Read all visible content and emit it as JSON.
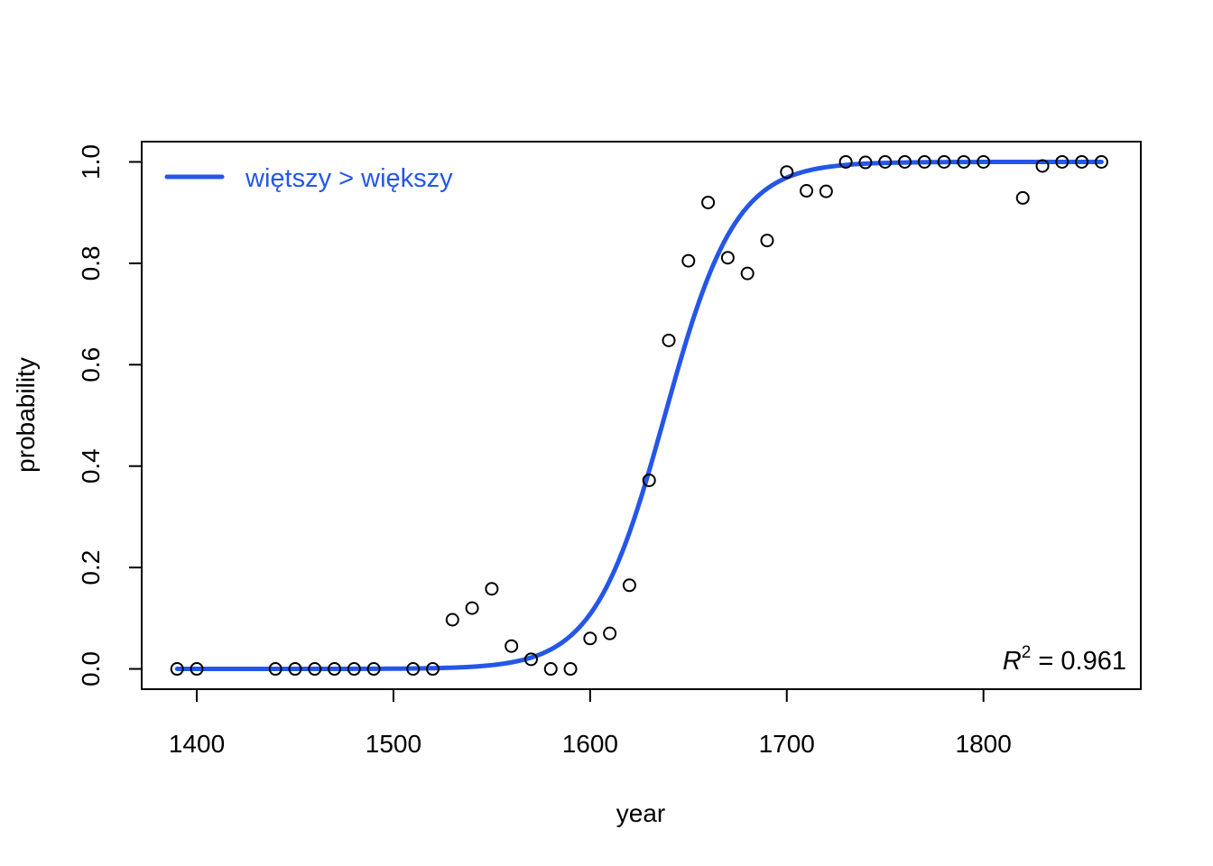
{
  "chart_data": {
    "type": "scatter",
    "xlabel": "year",
    "ylabel": "probability",
    "xlim": [
      1372,
      1880
    ],
    "ylim": [
      -0.04,
      1.04
    ],
    "x_ticks": [
      1400,
      1500,
      1600,
      1700,
      1800
    ],
    "y_ticks": [
      0.0,
      0.2,
      0.4,
      0.6,
      0.8,
      1.0
    ],
    "x_tick_labels": [
      "1400",
      "1500",
      "1600",
      "1700",
      "1800"
    ],
    "y_tick_labels": [
      "0.0",
      "0.2",
      "0.4",
      "0.6",
      "0.8",
      "1.0"
    ],
    "grid": false,
    "legend_position": "top-left",
    "points": {
      "x": [
        1390,
        1400,
        1440,
        1450,
        1460,
        1470,
        1480,
        1490,
        1510,
        1520,
        1530,
        1540,
        1550,
        1560,
        1570,
        1580,
        1590,
        1600,
        1610,
        1620,
        1630,
        1640,
        1650,
        1660,
        1670,
        1680,
        1690,
        1700,
        1710,
        1720,
        1730,
        1740,
        1750,
        1760,
        1770,
        1780,
        1790,
        1800,
        1820,
        1830,
        1840,
        1850,
        1860
      ],
      "y": [
        0.0,
        0.0,
        0.0,
        0.0,
        0.0,
        0.0,
        0.0,
        0.0,
        0.0,
        0.0,
        0.097,
        0.12,
        0.158,
        0.045,
        0.019,
        0.0,
        0.0,
        0.06,
        0.07,
        0.165,
        0.372,
        0.648,
        0.805,
        0.92,
        0.811,
        0.78,
        0.845,
        0.98,
        0.943,
        0.942,
        1.0,
        0.999,
        1.0,
        1.0,
        1.0,
        1.0,
        1.0,
        1.0,
        0.929,
        0.992,
        1.0,
        1.0,
        1.0
      ]
    },
    "series": [
      {
        "name": "więtszy > większy",
        "type": "line",
        "color": "#2457e8",
        "model": "logistic",
        "midpoint": 1638,
        "scale": 18,
        "x_range": [
          1390,
          1860
        ]
      }
    ],
    "annotation": {
      "r2_label": "R",
      "r2_power": "2",
      "r2_value": " = 0.961",
      "position": "bottom-right"
    }
  }
}
